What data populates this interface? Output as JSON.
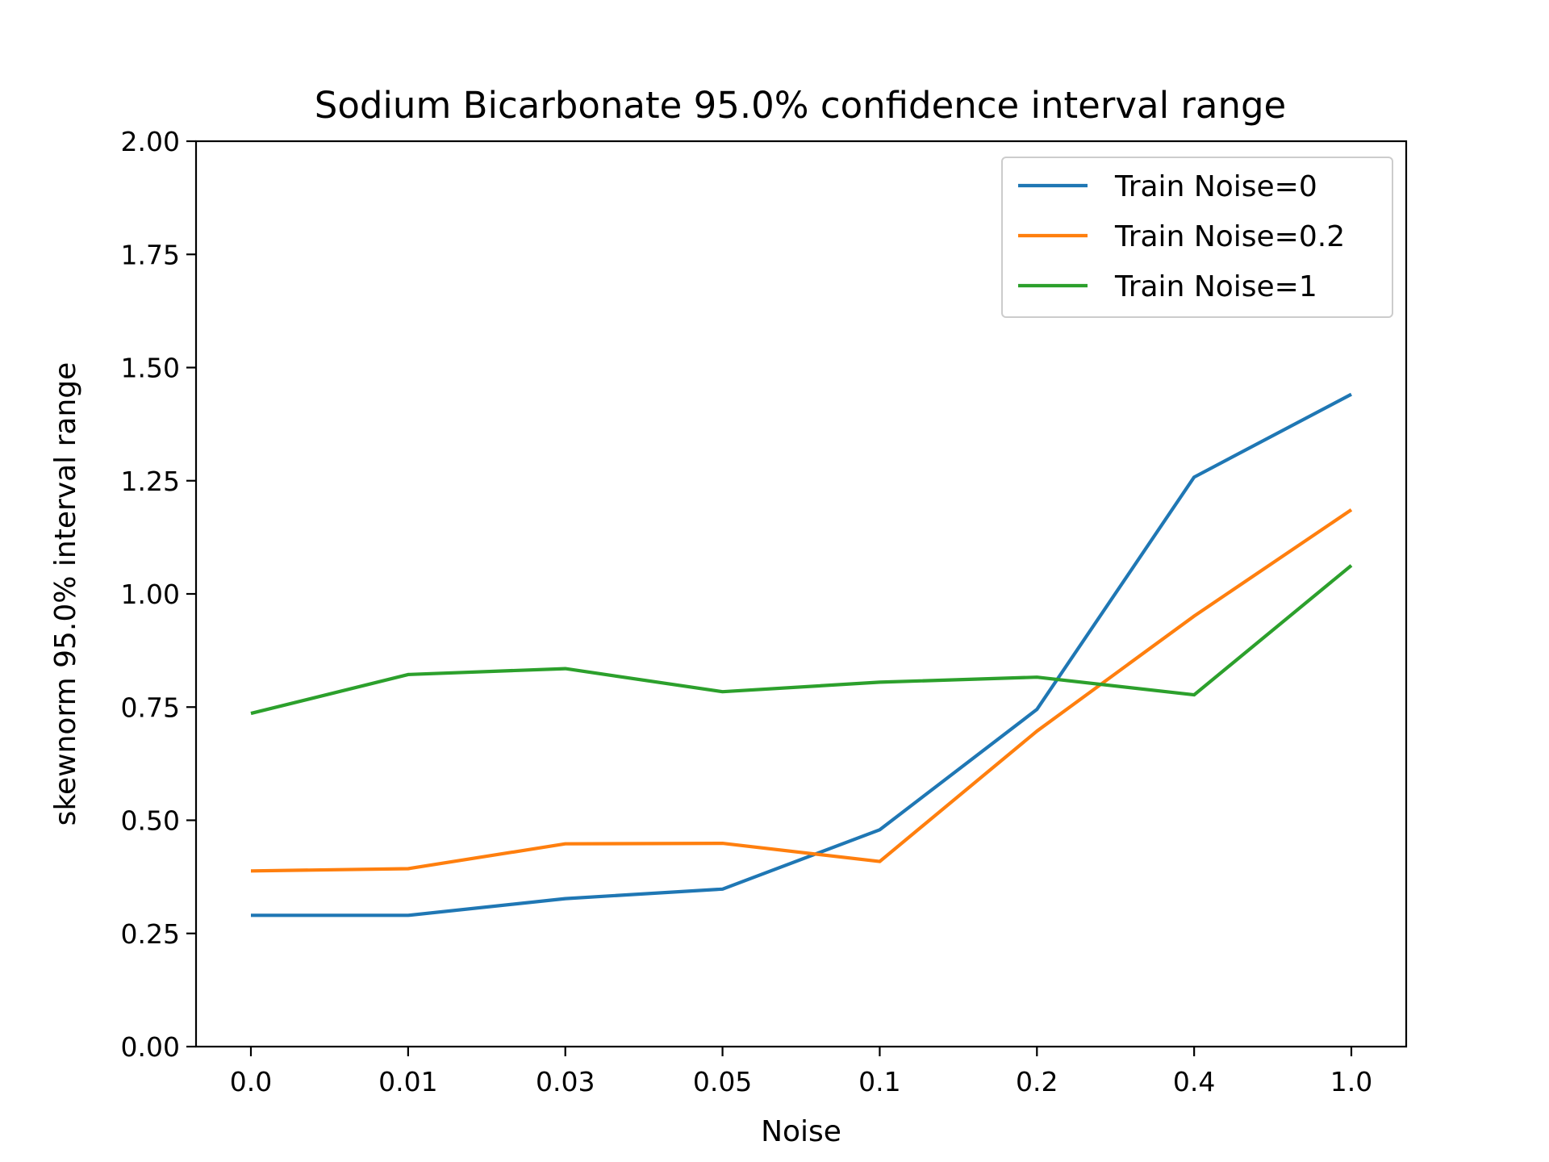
{
  "chart_data": {
    "type": "line",
    "title": "Sodium Bicarbonate 95.0% confidence interval range",
    "xlabel": "Noise",
    "ylabel": "skewnorm 95.0% interval range",
    "categories": [
      "0.0",
      "0.01",
      "0.03",
      "0.05",
      "0.1",
      "0.2",
      "0.4",
      "1.0"
    ],
    "ylim": [
      0,
      2
    ],
    "yticks": [
      "0.00",
      "0.25",
      "0.50",
      "0.75",
      "1.00",
      "1.25",
      "1.50",
      "1.75",
      "2.00"
    ],
    "grid": false,
    "legend_position": "top-right",
    "series": [
      {
        "name": "Train Noise=0",
        "color": "#1f77b4",
        "values": [
          0.29,
          0.29,
          0.327,
          0.348,
          0.479,
          0.745,
          1.258,
          1.441
        ]
      },
      {
        "name": "Train Noise=0.2",
        "color": "#ff7f0e",
        "values": [
          0.388,
          0.393,
          0.448,
          0.449,
          0.409,
          0.697,
          0.951,
          1.186
        ]
      },
      {
        "name": "Train Noise=1",
        "color": "#2ca02c",
        "values": [
          0.736,
          0.822,
          0.835,
          0.784,
          0.805,
          0.816,
          0.777,
          1.063
        ]
      }
    ]
  }
}
